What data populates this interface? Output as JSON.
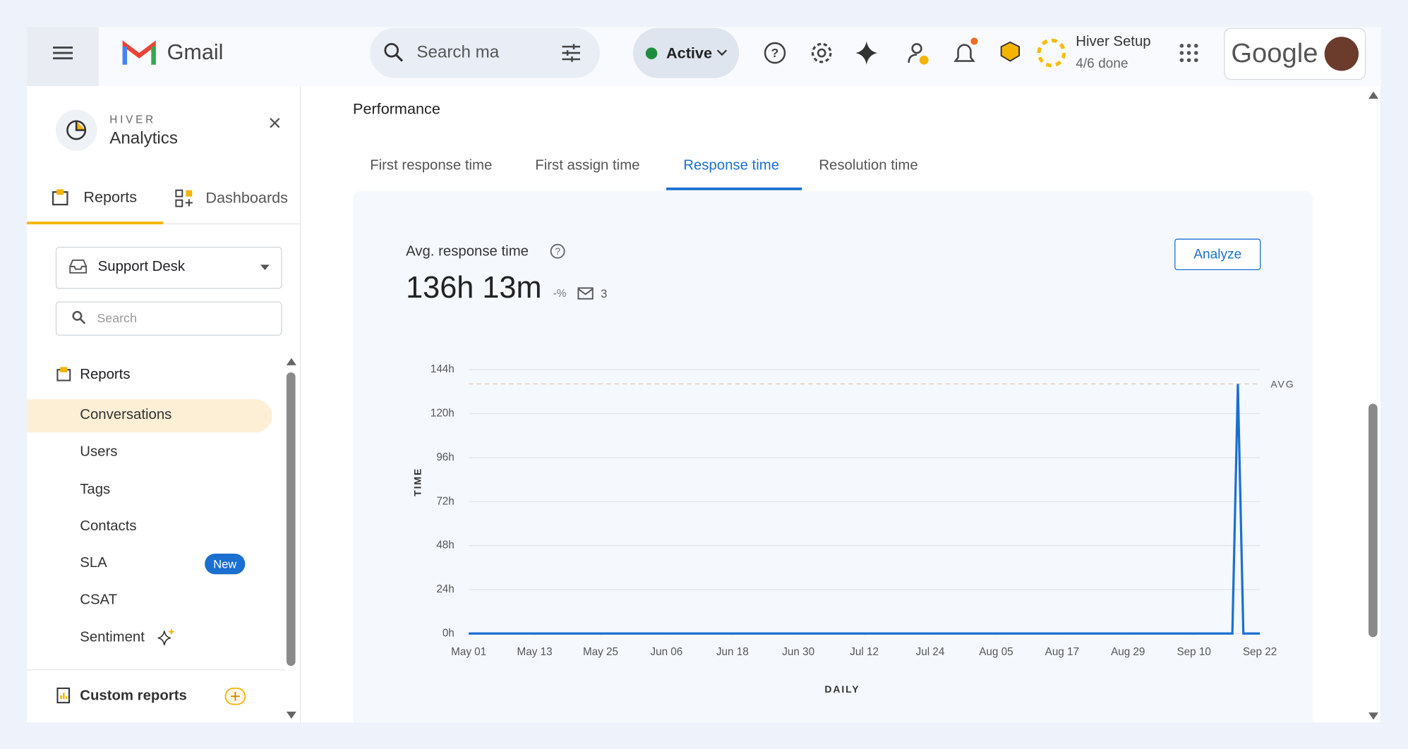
{
  "header": {
    "app": "Gmail",
    "search_placeholder": "Search ma",
    "status": "Active",
    "setup_title": "Hiver Setup",
    "setup_progress": "4/6 done",
    "brand": "Google"
  },
  "sidebar": {
    "brand": "HIVER",
    "title": "Analytics",
    "tabs": [
      "Reports",
      "Dashboards"
    ],
    "inbox": "Support Desk",
    "search_placeholder": "Search",
    "section": "Reports",
    "items": [
      "Conversations",
      "Users",
      "Tags",
      "Contacts",
      "SLA",
      "CSAT",
      "Sentiment"
    ],
    "badge": "New",
    "custom_reports": "Custom reports"
  },
  "main": {
    "heading": "Performance",
    "tabs": [
      "First response time",
      "First assign time",
      "Response time",
      "Resolution time"
    ],
    "metric_title": "Avg. response time",
    "metric_value": "136h 13m",
    "change": "-%",
    "count": 3,
    "button": "Analyze"
  },
  "chart_data": {
    "type": "line",
    "color": "#1a6fd1",
    "x": [
      0,
      139,
      140,
      141,
      144
    ],
    "values": [
      0,
      0,
      136.22,
      0,
      0
    ],
    "xlim": [
      0,
      144
    ],
    "xticks": [
      {
        "value": 0,
        "label": "May 01"
      },
      {
        "value": 12,
        "label": "May 13"
      },
      {
        "value": 24,
        "label": "May 25"
      },
      {
        "value": 36,
        "label": "Jun 06"
      },
      {
        "value": 48,
        "label": "Jun 18"
      },
      {
        "value": 60,
        "label": "Jun 30"
      },
      {
        "value": 72,
        "label": "Jul 12"
      },
      {
        "value": 84,
        "label": "Jul 24"
      },
      {
        "value": 96,
        "label": "Aug 05"
      },
      {
        "value": 108,
        "label": "Aug 17"
      },
      {
        "value": 120,
        "label": "Aug 29"
      },
      {
        "value": 132,
        "label": "Sep 10"
      },
      {
        "value": 144,
        "label": "Sep 22"
      }
    ],
    "ylim": [
      0,
      144
    ],
    "yticks": [
      {
        "value": 0,
        "label": "0h"
      },
      {
        "value": 24,
        "label": "24h"
      },
      {
        "value": 48,
        "label": "48h"
      },
      {
        "value": 72,
        "label": "72h"
      },
      {
        "value": 96,
        "label": "96h"
      },
      {
        "value": 120,
        "label": "120h"
      },
      {
        "value": 144,
        "label": "144h"
      }
    ],
    "grid": true,
    "avg_value": 136.22,
    "avg_label": "AVG",
    "ylabel": "TIME",
    "xlabel": "DAILY"
  }
}
